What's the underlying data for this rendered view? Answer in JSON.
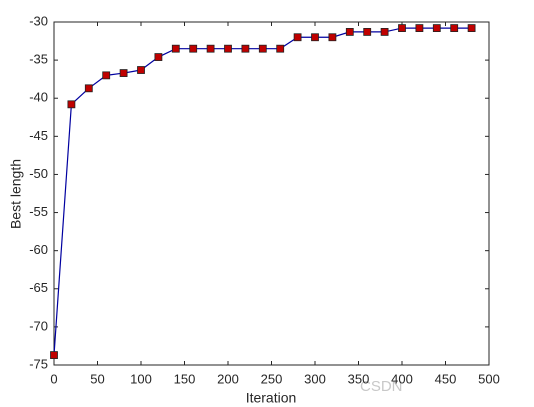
{
  "chart_data": {
    "type": "line",
    "xlabel": "Iteration",
    "ylabel": "Best length",
    "x": [
      0,
      20,
      40,
      60,
      80,
      100,
      120,
      140,
      160,
      180,
      200,
      220,
      240,
      260,
      280,
      300,
      320,
      340,
      360,
      380,
      400,
      420,
      440,
      460,
      480
    ],
    "series": [
      {
        "color": "#0000a0",
        "marker_color": "#c00000",
        "values": [
          -73.7,
          -40.8,
          -38.7,
          -37.0,
          -36.7,
          -36.3,
          -34.6,
          -33.5,
          -33.5,
          -33.5,
          -33.5,
          -33.5,
          -33.5,
          -33.5,
          -32.0,
          -32.0,
          -32.0,
          -31.3,
          -31.3,
          -31.3,
          -30.8,
          -30.8,
          -30.8,
          -30.8,
          -30.8
        ]
      }
    ],
    "xlim": [
      0,
      500
    ],
    "xticks": [
      0,
      50,
      100,
      150,
      200,
      250,
      300,
      350,
      400,
      450,
      500
    ],
    "ylim": [
      -75,
      -30
    ],
    "yticks": [
      -75,
      -70,
      -65,
      -60,
      -55,
      -50,
      -45,
      -40,
      -35,
      -30
    ],
    "watermark": "CSDN"
  }
}
